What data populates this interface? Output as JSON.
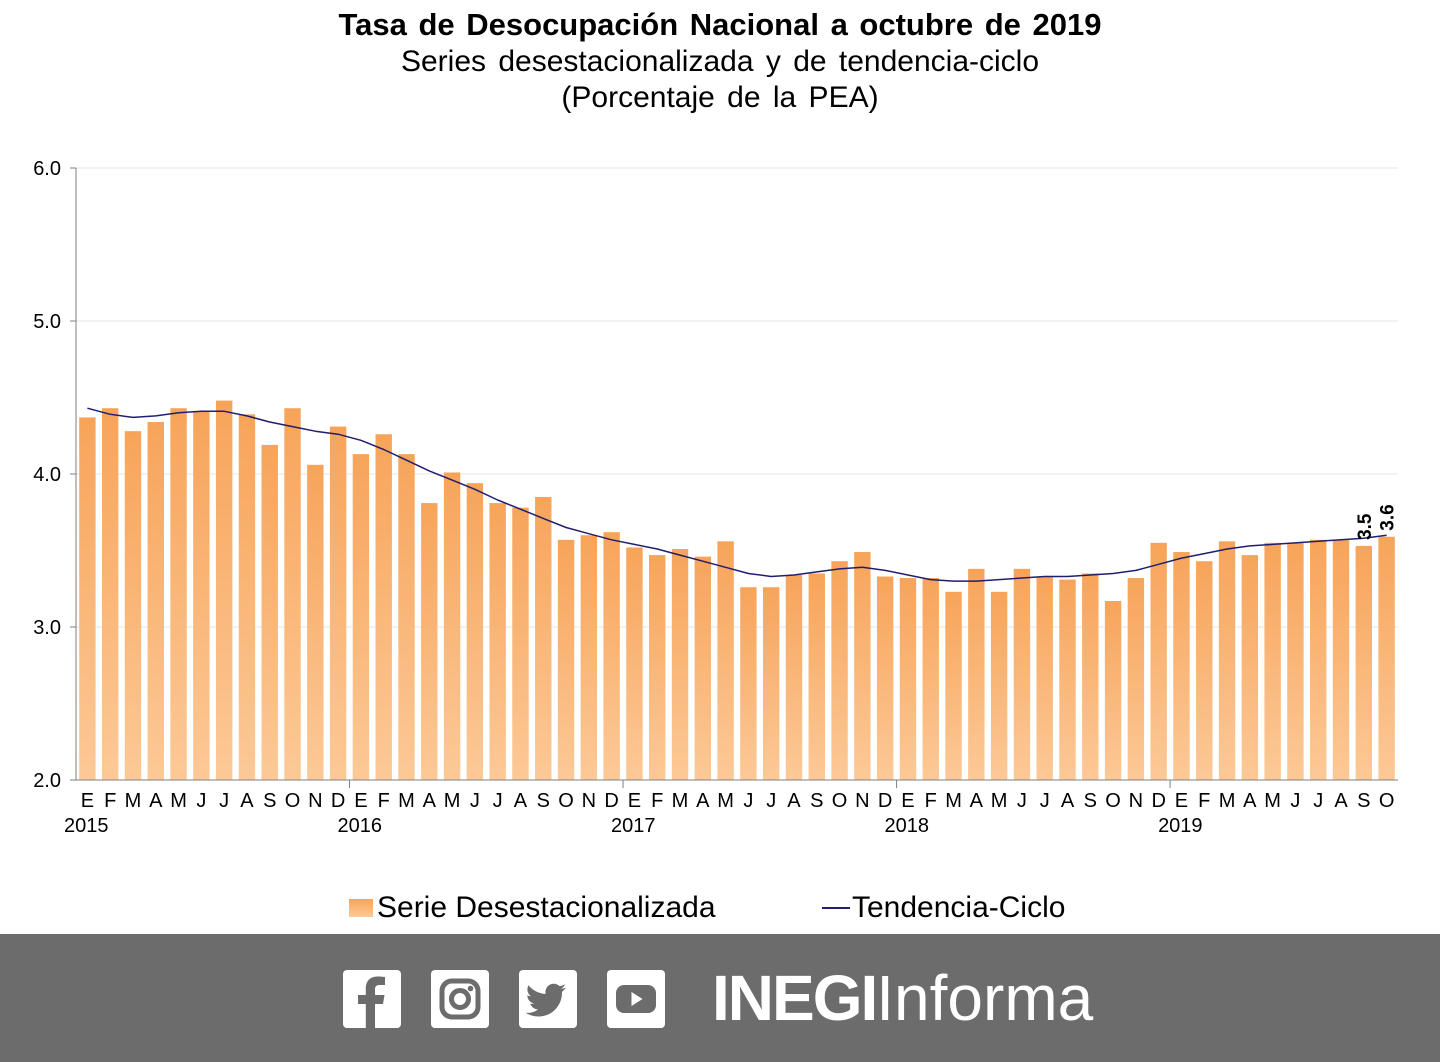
{
  "title": "Tasa de Desocupación Nacional a octubre de 2019",
  "subtitle": "Series desestacionalizada y de tendencia-ciclo",
  "unit_label": "(Porcentaje de la PEA)",
  "colors": {
    "bar_top": "#f7a45a",
    "bar_bottom": "#fcc997",
    "trend_line": "#1f1f6e",
    "gridline": "#e4e4e4",
    "footer_bg": "#6c6c6c"
  },
  "chart_data": {
    "type": "bar",
    "title": "Tasa de Desocupación Nacional a octubre de 2019",
    "xlabel": "",
    "ylabel": "",
    "ylim": [
      2.0,
      6.0
    ],
    "yticks": [
      "6.0",
      "5.0",
      "4.0",
      "3.0",
      "2.0"
    ],
    "ytick_values": [
      6.0,
      5.0,
      4.0,
      3.0,
      2.0
    ],
    "grid": true,
    "legend_position": "bottom",
    "categories": [
      "E",
      "F",
      "M",
      "A",
      "M",
      "J",
      "J",
      "A",
      "S",
      "O",
      "N",
      "D",
      "E",
      "F",
      "M",
      "A",
      "M",
      "J",
      "J",
      "A",
      "S",
      "O",
      "N",
      "D",
      "E",
      "F",
      "M",
      "A",
      "M",
      "J",
      "J",
      "A",
      "S",
      "O",
      "N",
      "D",
      "E",
      "F",
      "M",
      "A",
      "M",
      "J",
      "J",
      "A",
      "S",
      "O",
      "N",
      "D",
      "E",
      "F",
      "M",
      "A",
      "M",
      "J",
      "J",
      "A",
      "S",
      "O"
    ],
    "years": [
      {
        "label": "2015",
        "start_index": 0
      },
      {
        "label": "2016",
        "start_index": 12
      },
      {
        "label": "2017",
        "start_index": 24
      },
      {
        "label": "2018",
        "start_index": 36
      },
      {
        "label": "2019",
        "start_index": 48
      }
    ],
    "series": [
      {
        "name": "Serie Desestacionalizada",
        "type": "bar",
        "values": [
          4.37,
          4.43,
          4.28,
          4.34,
          4.43,
          4.41,
          4.48,
          4.39,
          4.19,
          4.43,
          4.06,
          4.31,
          4.13,
          4.26,
          4.13,
          3.81,
          4.01,
          3.94,
          3.81,
          3.78,
          3.85,
          3.57,
          3.6,
          3.62,
          3.52,
          3.47,
          3.51,
          3.46,
          3.56,
          3.26,
          3.26,
          3.34,
          3.35,
          3.43,
          3.49,
          3.33,
          3.32,
          3.32,
          3.23,
          3.38,
          3.23,
          3.38,
          3.33,
          3.31,
          3.35,
          3.17,
          3.32,
          3.55,
          3.49,
          3.43,
          3.56,
          3.47,
          3.55,
          3.55,
          3.57,
          3.57,
          3.53,
          3.59
        ]
      },
      {
        "name": "Tendencia-Ciclo",
        "type": "line",
        "values": [
          4.43,
          4.39,
          4.37,
          4.38,
          4.4,
          4.41,
          4.41,
          4.38,
          4.34,
          4.31,
          4.28,
          4.26,
          4.22,
          4.16,
          4.09,
          4.02,
          3.96,
          3.9,
          3.83,
          3.77,
          3.71,
          3.65,
          3.61,
          3.57,
          3.54,
          3.51,
          3.47,
          3.43,
          3.39,
          3.35,
          3.33,
          3.34,
          3.36,
          3.38,
          3.39,
          3.37,
          3.34,
          3.31,
          3.3,
          3.3,
          3.31,
          3.32,
          3.33,
          3.33,
          3.34,
          3.35,
          3.37,
          3.41,
          3.45,
          3.48,
          3.51,
          3.53,
          3.54,
          3.55,
          3.56,
          3.57,
          3.58,
          3.6
        ]
      }
    ],
    "data_labels": [
      {
        "index": 56,
        "text": "3.5"
      },
      {
        "index": 57,
        "text": "3.6"
      }
    ]
  },
  "legend": {
    "bars_label": "Serie Desestacionalizada",
    "line_label": "Tendencia-Ciclo"
  },
  "footer": {
    "social_icons": [
      "facebook-icon",
      "instagram-icon",
      "twitter-icon",
      "youtube-icon"
    ],
    "brand_bold": "INEGI",
    "brand_regular": "Informa"
  }
}
